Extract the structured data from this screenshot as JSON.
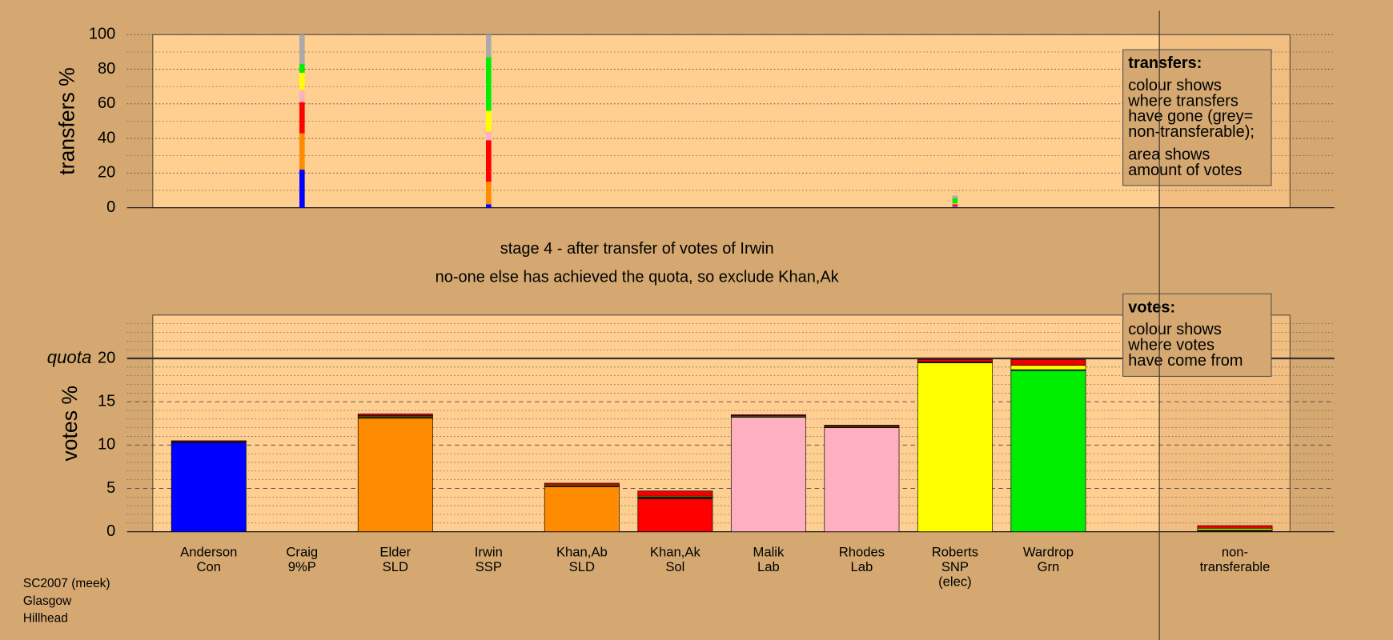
{
  "header": {
    "lines": [
      "stage 4 - after transfer of votes of Irwin",
      "no-one else has achieved the quota, so exclude Khan,Ak"
    ]
  },
  "footer": [
    "SC2007 (meek)",
    "Glasgow",
    "Hillhead"
  ],
  "chart_data": [
    {
      "type": "stacked-bar",
      "ylabel": "transfers %",
      "ylim": [
        0,
        100
      ],
      "yticks": [
        0,
        20,
        40,
        60,
        80,
        100
      ],
      "minor_yticks": [
        10,
        30,
        50,
        70,
        90
      ],
      "note": {
        "title": "transfers:",
        "lines": [
          "colour shows",
          "where transfers",
          "have gone (grey=",
          "non-transferable);",
          "area shows",
          "amount of votes"
        ]
      },
      "series": [
        {
          "color": "#0000ff",
          "values": [
            null,
            22,
            null,
            2,
            null,
            null,
            null,
            null,
            0.5,
            null,
            null
          ]
        },
        {
          "color": "#ff8c00",
          "values": [
            null,
            21,
            null,
            13,
            null,
            null,
            null,
            null,
            0.5,
            null,
            null
          ]
        },
        {
          "color": "#ff0000",
          "values": [
            null,
            18,
            null,
            24,
            null,
            null,
            null,
            null,
            1,
            null,
            null
          ]
        },
        {
          "color": "#ffb0c0",
          "values": [
            null,
            7,
            null,
            5,
            null,
            null,
            null,
            null,
            0.5,
            null,
            null
          ]
        },
        {
          "color": "#ffff00",
          "values": [
            null,
            10,
            null,
            12,
            null,
            null,
            null,
            null,
            null,
            null,
            null
          ]
        },
        {
          "color": "#00ee00",
          "values": [
            null,
            5,
            null,
            31,
            null,
            null,
            null,
            null,
            3,
            null,
            null
          ]
        },
        {
          "color": "#aaaaaa",
          "values": [
            null,
            17,
            null,
            13,
            null,
            null,
            null,
            null,
            1.5,
            null,
            null
          ]
        }
      ]
    },
    {
      "type": "stacked-bar",
      "ylabel": "votes %",
      "ylim": [
        0,
        25
      ],
      "yticks": [
        0,
        5,
        10,
        15,
        20
      ],
      "minor_yticks": [
        1,
        2,
        3,
        4,
        6,
        7,
        8,
        9,
        11,
        12,
        13,
        14,
        16,
        17,
        18,
        19,
        21,
        22,
        23,
        24
      ],
      "quota": 20,
      "quota_label": "quota",
      "note": {
        "title": "votes:",
        "lines": [
          "colour shows",
          "where votes",
          "have come from"
        ]
      },
      "categories": [
        [
          "Anderson",
          "Con"
        ],
        [
          "Craig",
          "9%P"
        ],
        [
          "Elder",
          "SLD"
        ],
        [
          "Irwin",
          "SSP"
        ],
        [
          "Khan,Ab",
          "SLD"
        ],
        [
          "Khan,Ak",
          "Sol"
        ],
        [
          "Malik",
          "Lab"
        ],
        [
          "Rhodes",
          "Lab"
        ],
        [
          "Roberts",
          "SNP",
          "(elec)"
        ],
        [
          "Wardrop",
          "Grn"
        ],
        [
          "non-",
          "transferable"
        ]
      ],
      "series": [
        {
          "colors": [
            "#0000ff",
            null,
            "#ff8c00",
            null,
            "#ff8c00",
            "#ff0000",
            "#ffb0c0",
            "#ffb0c0",
            "#ffff00",
            "#00ee00",
            null
          ],
          "values": [
            10.3,
            null,
            13.1,
            null,
            5.2,
            3.8,
            13.2,
            12.0,
            19.5,
            18.6,
            null
          ]
        },
        {
          "color": "#3a2a10",
          "values": [
            0.1,
            null,
            0.2,
            null,
            0.1,
            0.2,
            0.1,
            0.1,
            0.1,
            0.1,
            0.2
          ]
        },
        {
          "color": "#ffff00",
          "values": [
            0,
            null,
            0.1,
            null,
            0.1,
            0.1,
            0.1,
            0.1,
            null,
            0.5,
            0.2
          ]
        },
        {
          "color": "#ee0000",
          "values": [
            0.1,
            null,
            0.2,
            null,
            0.2,
            0.6,
            0.1,
            0.1,
            0.3,
            0.7,
            0.3
          ]
        }
      ]
    }
  ]
}
